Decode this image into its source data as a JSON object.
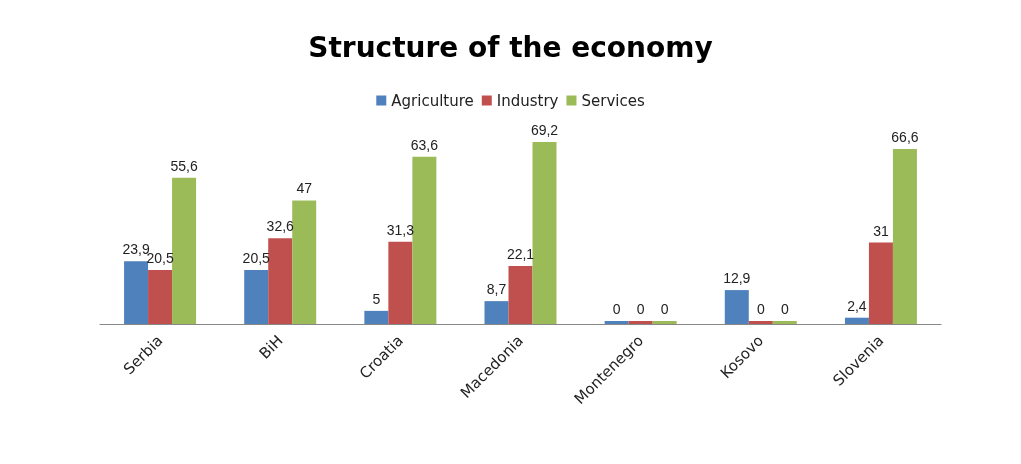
{
  "chart_data": {
    "type": "bar",
    "title": "Structure of the economy",
    "categories": [
      "Serbia",
      "BiH",
      "Croatia",
      "Macedonia",
      "Montenegro",
      "Kosovo",
      "Slovenia"
    ],
    "series": [
      {
        "name": "Agriculture",
        "color": "#4f81bd",
        "values": [
          23.9,
          20.5,
          5,
          8.7,
          0,
          12.9,
          2.4
        ],
        "value_labels": [
          "23,9",
          "20,5",
          "5",
          "8,7",
          "0",
          "12,9",
          "2,4"
        ]
      },
      {
        "name": "Industry",
        "color": "#c0504d",
        "values": [
          20.5,
          32.6,
          31.3,
          22.1,
          0,
          0,
          31
        ],
        "value_labels": [
          "20,5",
          "32,6",
          "31,3",
          "22,1",
          "0",
          "0",
          "31"
        ]
      },
      {
        "name": "Services",
        "color": "#9bbb59",
        "values": [
          55.6,
          47,
          63.6,
          69.2,
          0,
          0,
          66.6
        ],
        "value_labels": [
          "55,6",
          "47",
          "63,6",
          "69,2",
          "0",
          "0",
          "66,6"
        ]
      }
    ],
    "legend": "top"
  }
}
